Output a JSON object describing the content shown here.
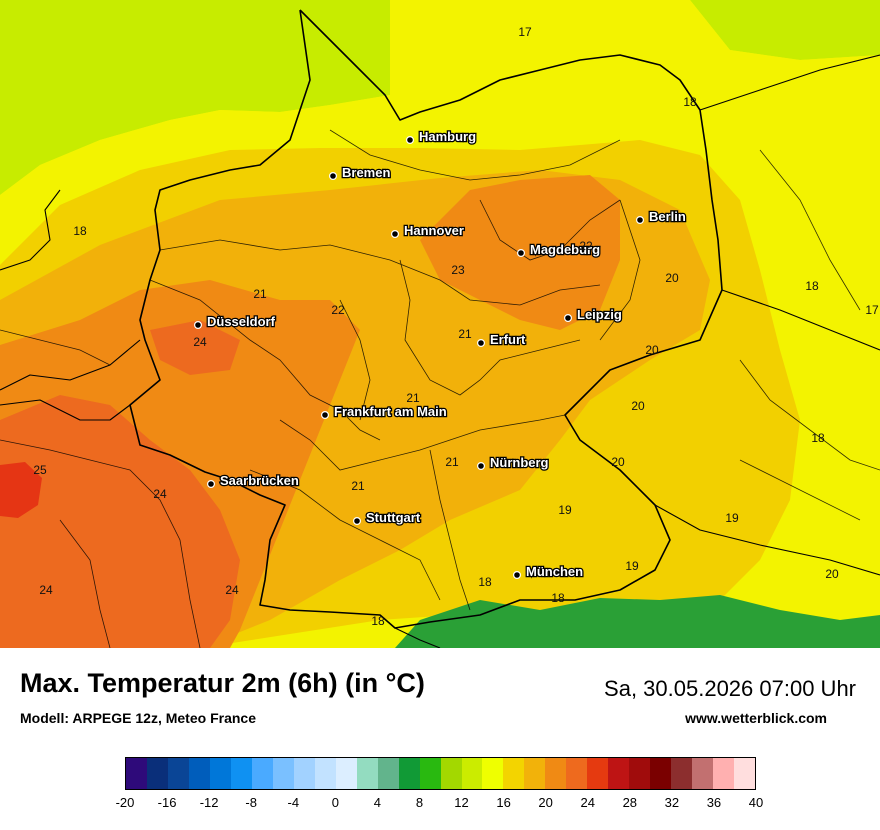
{
  "header": {
    "title": "Max. Temperatur 2m (6h) (in °C)",
    "model": "Modell: ARPEGE 12z, Meteo France",
    "datetime": "Sa, 30.05.2026 07:00 Uhr",
    "website": "www.wetterblick.com"
  },
  "colors": {
    "sea": "#c7ec00",
    "t16": "#f3f300",
    "t18": "#f2d000",
    "t20": "#f2b10a",
    "t22": "#f08a14",
    "t24": "#ed6a1f",
    "t26": "#e53514",
    "alpine_green": "#2aa036",
    "border": "#000000"
  },
  "cities": [
    {
      "name": "Hamburg"
    },
    {
      "name": "Bremen"
    },
    {
      "name": "Berlin"
    },
    {
      "name": "Hannover"
    },
    {
      "name": "Magdeburg"
    },
    {
      "name": "Leipzig"
    },
    {
      "name": "Düsseldorf"
    },
    {
      "name": "Erfurt"
    },
    {
      "name": "Frankfurt am Main"
    },
    {
      "name": "Nürnberg"
    },
    {
      "name": "Saarbrücken"
    },
    {
      "name": "Stuttgart"
    },
    {
      "name": "München"
    }
  ],
  "temperature_labels": [
    "17",
    "18",
    "18",
    "22",
    "23",
    "20",
    "18",
    "17",
    "21",
    "22",
    "24",
    "21",
    "20",
    "21",
    "20",
    "18",
    "25",
    "21",
    "20",
    "24",
    "21",
    "19",
    "19",
    "24",
    "24",
    "18",
    "19",
    "20",
    "18",
    "18"
  ],
  "legend": {
    "ticks": [
      "-20",
      "-16",
      "-12",
      "-8",
      "-4",
      "0",
      "4",
      "8",
      "12",
      "16",
      "20",
      "24",
      "28",
      "32",
      "36",
      "40"
    ],
    "colors": [
      "#2e0a7a",
      "#0a2f7a",
      "#0a4596",
      "#005dbb",
      "#0077d9",
      "#0f91f2",
      "#4aaaff",
      "#7ac0ff",
      "#a2d2ff",
      "#c2e2ff",
      "#dceeff",
      "#93dcc0",
      "#62b48c",
      "#119a36",
      "#29b910",
      "#a3d800",
      "#cbec00",
      "#efff00",
      "#f3d400",
      "#f2b20a",
      "#f08a14",
      "#ee6a1e",
      "#e53a10",
      "#be1414",
      "#a00c0c",
      "#7a0000",
      "#8c2e2e",
      "#c27070",
      "#ffb0b0",
      "#ffdede"
    ]
  }
}
